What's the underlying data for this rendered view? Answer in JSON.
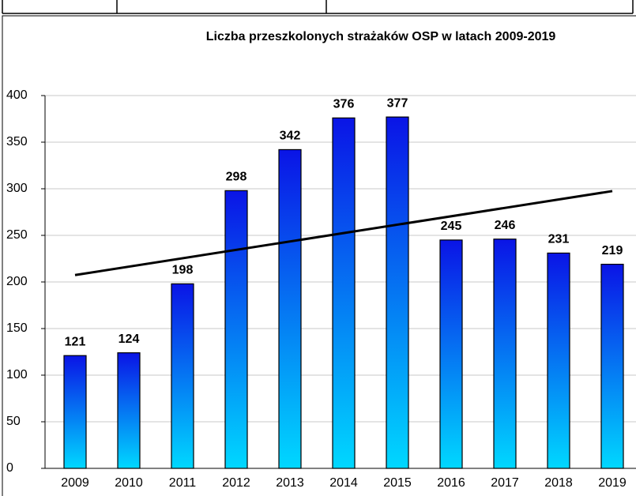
{
  "chart_data": {
    "type": "bar",
    "title": "Liczba przeszkolonych strażaków OSP w latach 2009-2019",
    "categories": [
      "2009",
      "2010",
      "2011",
      "2012",
      "2013",
      "2014",
      "2015",
      "2016",
      "2017",
      "2018",
      "2019"
    ],
    "values": [
      121,
      124,
      198,
      298,
      342,
      376,
      377,
      245,
      246,
      231,
      219
    ],
    "colors": [
      "#0a14e6",
      "#00d8ff"
    ],
    "ylim": [
      0,
      400
    ],
    "yticks": [
      0,
      50,
      100,
      150,
      200,
      250,
      300,
      350,
      400
    ],
    "grid": true,
    "trendline": {
      "color": "#000000",
      "values": [
        207.4,
        297.5
      ]
    }
  }
}
